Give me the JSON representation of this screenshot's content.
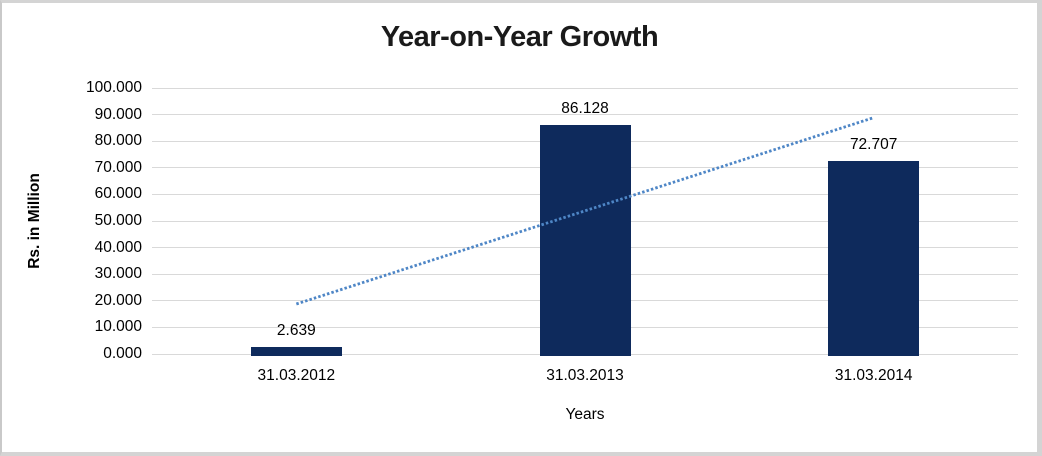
{
  "chart_data": {
    "type": "bar",
    "title": "Year-on-Year Growth",
    "categories": [
      "31.03.2012",
      "31.03.2013",
      "31.03.2014"
    ],
    "values": [
      2.639,
      86.128,
      72.707
    ],
    "data_labels": [
      "2.639",
      "86.128",
      "72.707"
    ],
    "xlabel": "Years",
    "ylabel": "Rs. in Million",
    "ylim": [
      0,
      100
    ],
    "ytick_labels": [
      "0.000",
      "10.000",
      "20.000",
      "30.000",
      "40.000",
      "50.000",
      "60.000",
      "70.000",
      "80.000",
      "90.000",
      "100.000"
    ],
    "grid": true,
    "legend": false,
    "trendline": {
      "type": "linear",
      "style": "dotted",
      "color": "#4E86C6"
    },
    "colors": {
      "bar": "#0E2A5C",
      "gridline": "#D9D9D9",
      "title": "#1A1A1A",
      "text": "#000000",
      "frame_border": "#D4D4D4"
    }
  }
}
